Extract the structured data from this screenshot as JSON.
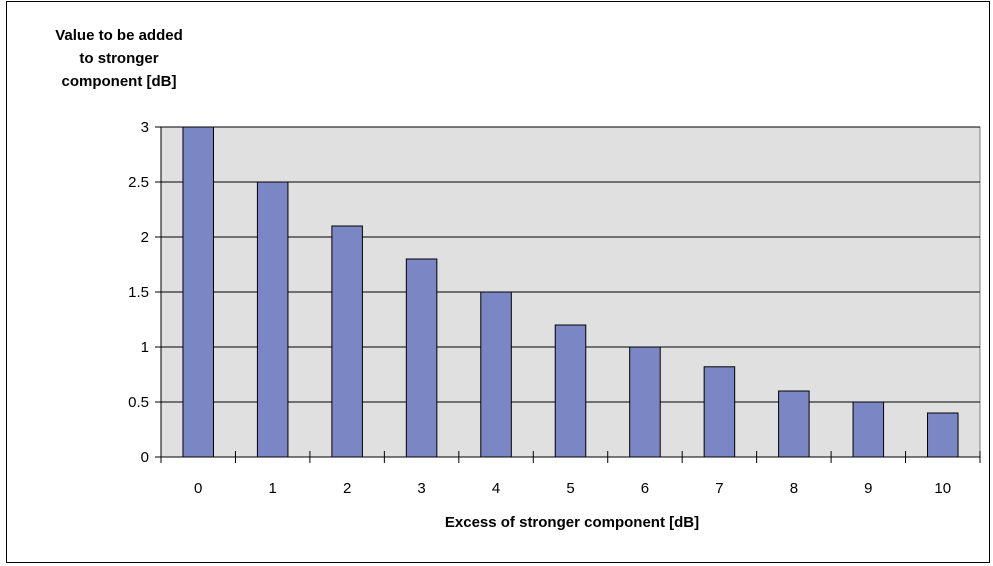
{
  "chart_data": {
    "type": "bar",
    "ylabel_lines": [
      "Value to be added",
      "to stronger",
      "component [dB]"
    ],
    "xlabel": "Excess of stronger component [dB]",
    "categories": [
      "0",
      "1",
      "2",
      "3",
      "4",
      "5",
      "6",
      "7",
      "8",
      "9",
      "10"
    ],
    "values": [
      3.0,
      2.5,
      2.1,
      1.8,
      1.5,
      1.2,
      1.0,
      0.82,
      0.6,
      0.5,
      0.4
    ],
    "yticks": [
      "0",
      "0.5",
      "1",
      "1.5",
      "2",
      "2.5",
      "3"
    ],
    "ylim": [
      0,
      3
    ],
    "grid": true,
    "colors": {
      "bar_fill": "#7b86c4",
      "plot_background": "#e0e0e0",
      "gridline": "#000000"
    }
  }
}
